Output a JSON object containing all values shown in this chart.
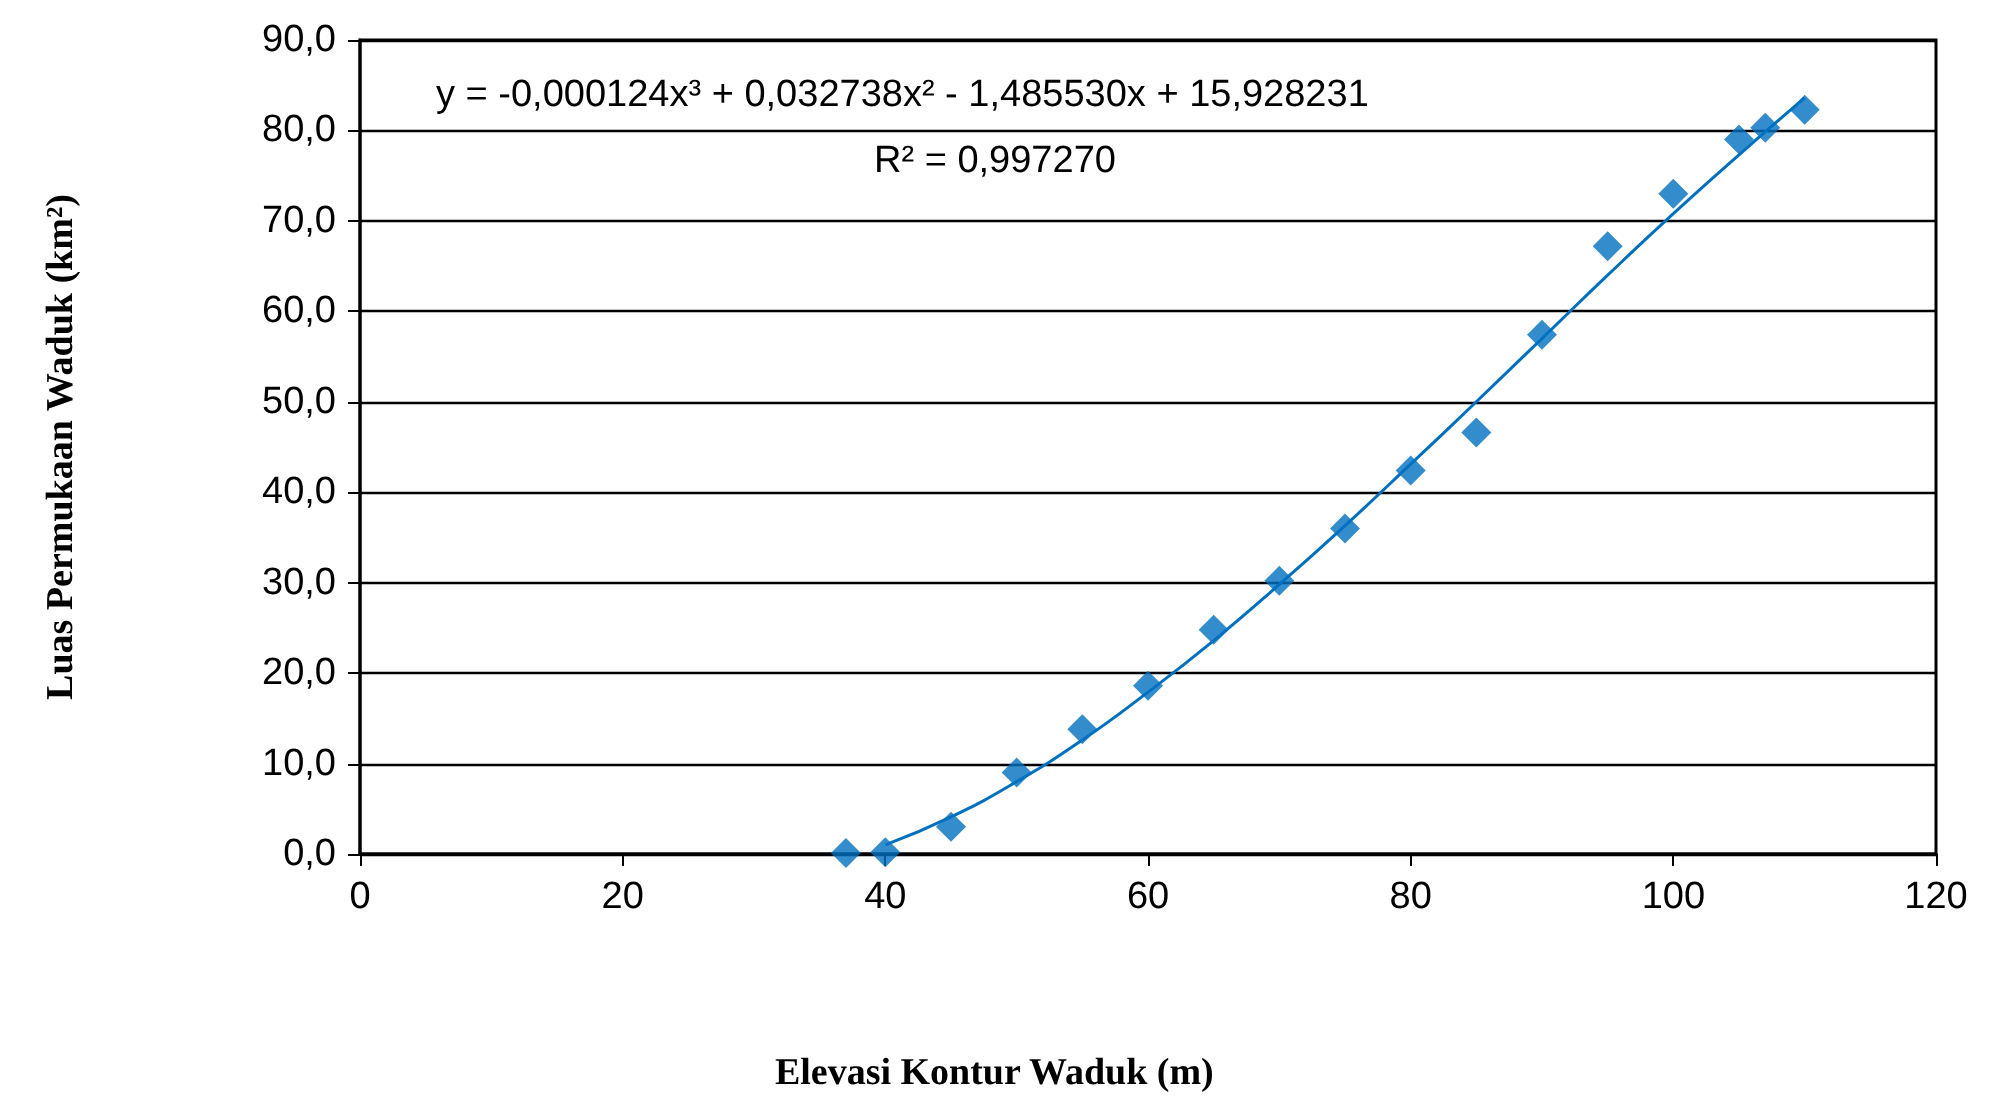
{
  "chart_data": {
    "type": "scatter",
    "xlabel": "Elevasi Kontur Waduk (m)",
    "ylabel": "Luas Permukaan Waduk (km²)",
    "annotations": [
      "y = -0,000124x³ + 0,032738x² - 1,485530x + 15,928231",
      "R² = 0,997270"
    ],
    "series": [
      {
        "color": "#0070c0",
        "marker": "diamond",
        "x": [
          37,
          40,
          45,
          50,
          55,
          60,
          65,
          70,
          75,
          80,
          85,
          90,
          95,
          100,
          105,
          107,
          110
        ],
        "values": [
          0.1,
          0.2,
          3.0,
          9.0,
          13.8,
          18.6,
          24.8,
          30.2,
          36.0,
          42.4,
          46.6,
          57.4,
          67.2,
          73.0,
          79.0,
          80.3,
          82.3
        ]
      },
      {
        "type": "line",
        "color": "#0070c0",
        "marker": "none",
        "x": [
          40,
          45,
          50,
          55,
          60,
          65,
          70,
          75,
          80,
          85,
          90,
          95,
          100,
          105,
          110
        ],
        "values": [
          1.0,
          4.1,
          8.0,
          12.6,
          17.9,
          23.6,
          29.8,
          36.3,
          43.1,
          50.0,
          57.0,
          64.0,
          70.8,
          77.3,
          83.6
        ]
      }
    ],
    "xlim": [
      0,
      120
    ],
    "xticks": [
      0,
      20,
      40,
      60,
      80,
      100,
      120
    ],
    "ylim": [
      0,
      90
    ],
    "yticks": [
      {
        "value": 0,
        "label": "0,0"
      },
      {
        "value": 10,
        "label": "10,0"
      },
      {
        "value": 20,
        "label": "20,0"
      },
      {
        "value": 30,
        "label": "30,0"
      },
      {
        "value": 40,
        "label": "40,0"
      },
      {
        "value": 50,
        "label": "50,0"
      },
      {
        "value": 60,
        "label": "60,0"
      },
      {
        "value": 70,
        "label": "70,0"
      },
      {
        "value": 80,
        "label": "80,0"
      },
      {
        "value": 90,
        "label": "90,0"
      }
    ],
    "grid": "y"
  }
}
